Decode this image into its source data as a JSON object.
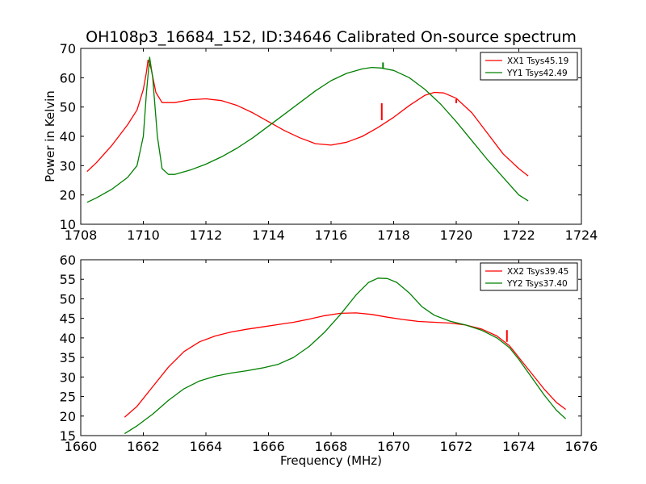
{
  "figure": {
    "title": "OH108p3_16684_152, ID:34646 Calibrated On-source spectrum"
  },
  "chart_data": [
    {
      "type": "line",
      "ylabel": "Power in Kelvin",
      "xlabel": "",
      "xlim": [
        1708,
        1724
      ],
      "ylim": [
        10,
        70
      ],
      "xticks": [
        "1708",
        "1710",
        "1712",
        "1714",
        "1716",
        "1718",
        "1720",
        "1722",
        "1724"
      ],
      "yticks": [
        "10",
        "20",
        "30",
        "40",
        "50",
        "60",
        "70"
      ],
      "legend_position": "top-right",
      "grid": false,
      "series": [
        {
          "name": "XX1 Tsys45.19",
          "color": "#ff0000",
          "points": [
            [
              1708.2,
              28
            ],
            [
              1708.5,
              31
            ],
            [
              1709.0,
              37
            ],
            [
              1709.5,
              44
            ],
            [
              1709.8,
              49
            ],
            [
              1710.0,
              56
            ],
            [
              1710.1,
              62
            ],
            [
              1710.15,
              66
            ],
            [
              1710.25,
              63
            ],
            [
              1710.4,
              55
            ],
            [
              1710.6,
              51.5
            ],
            [
              1711.0,
              51.5
            ],
            [
              1711.5,
              52.5
            ],
            [
              1712.0,
              52.8
            ],
            [
              1712.5,
              52.2
            ],
            [
              1713.0,
              50.5
            ],
            [
              1713.5,
              48
            ],
            [
              1714.0,
              45
            ],
            [
              1714.5,
              42
            ],
            [
              1715.0,
              39.5
            ],
            [
              1715.5,
              37.5
            ],
            [
              1716.0,
              37
            ],
            [
              1716.5,
              38
            ],
            [
              1717.0,
              40
            ],
            [
              1717.5,
              43
            ],
            [
              1718.0,
              46.5
            ],
            [
              1718.5,
              50.5
            ],
            [
              1719.0,
              54
            ],
            [
              1719.3,
              55
            ],
            [
              1719.6,
              54.8
            ],
            [
              1720.0,
              53
            ],
            [
              1720.5,
              48
            ],
            [
              1721.0,
              41
            ],
            [
              1721.5,
              34
            ],
            [
              1722.0,
              29
            ],
            [
              1722.3,
              26.5
            ]
          ],
          "spikes": [
            {
              "x": 1717.62,
              "y0": 45.5,
              "y1": 51.3
            },
            {
              "x": 1720.0,
              "y0": 51.3,
              "y1": 52.7
            }
          ]
        },
        {
          "name": "YY1 Tsys42.49",
          "color": "#008000",
          "points": [
            [
              1708.2,
              17.5
            ],
            [
              1708.5,
              19
            ],
            [
              1709.0,
              22
            ],
            [
              1709.5,
              26
            ],
            [
              1709.8,
              30
            ],
            [
              1710.0,
              40
            ],
            [
              1710.1,
              55
            ],
            [
              1710.2,
              67
            ],
            [
              1710.3,
              60
            ],
            [
              1710.45,
              40
            ],
            [
              1710.6,
              29
            ],
            [
              1710.8,
              27
            ],
            [
              1711.0,
              27
            ],
            [
              1711.5,
              28.5
            ],
            [
              1712.0,
              30.5
            ],
            [
              1712.5,
              33
            ],
            [
              1713.0,
              36
            ],
            [
              1713.5,
              39.5
            ],
            [
              1714.0,
              43.5
            ],
            [
              1714.5,
              47.5
            ],
            [
              1715.0,
              51.5
            ],
            [
              1715.5,
              55.5
            ],
            [
              1716.0,
              59
            ],
            [
              1716.5,
              61.5
            ],
            [
              1717.0,
              63
            ],
            [
              1717.3,
              63.5
            ],
            [
              1717.6,
              63.3
            ],
            [
              1718.0,
              62.5
            ],
            [
              1718.5,
              60
            ],
            [
              1719.0,
              56
            ],
            [
              1719.5,
              51
            ],
            [
              1720.0,
              45
            ],
            [
              1720.5,
              38.5
            ],
            [
              1721.0,
              32
            ],
            [
              1721.5,
              26
            ],
            [
              1722.0,
              20
            ],
            [
              1722.3,
              18
            ]
          ],
          "spikes": [
            {
              "x": 1717.66,
              "y0": 63.2,
              "y1": 65.2
            }
          ]
        }
      ]
    },
    {
      "type": "line",
      "ylabel": "",
      "xlabel": "Frequency (MHz)",
      "xlim": [
        1660,
        1676
      ],
      "ylim": [
        15,
        60
      ],
      "xticks": [
        "1660",
        "1662",
        "1664",
        "1666",
        "1668",
        "1670",
        "1672",
        "1674",
        "1676"
      ],
      "yticks": [
        "15",
        "20",
        "25",
        "30",
        "35",
        "40",
        "45",
        "50",
        "55",
        "60"
      ],
      "legend_position": "top-right",
      "grid": false,
      "series": [
        {
          "name": "XX2 Tsys39.45",
          "color": "#ff0000",
          "points": [
            [
              1661.4,
              19.7
            ],
            [
              1661.8,
              22.5
            ],
            [
              1662.3,
              27.5
            ],
            [
              1662.8,
              32.5
            ],
            [
              1663.3,
              36.5
            ],
            [
              1663.8,
              39
            ],
            [
              1664.3,
              40.5
            ],
            [
              1664.8,
              41.5
            ],
            [
              1665.3,
              42.2
            ],
            [
              1665.8,
              42.8
            ],
            [
              1666.3,
              43.4
            ],
            [
              1666.8,
              44
            ],
            [
              1667.3,
              44.8
            ],
            [
              1667.8,
              45.7
            ],
            [
              1668.3,
              46.3
            ],
            [
              1668.8,
              46.4
            ],
            [
              1669.3,
              46
            ],
            [
              1669.8,
              45.3
            ],
            [
              1670.3,
              44.7
            ],
            [
              1670.8,
              44.2
            ],
            [
              1671.3,
              44
            ],
            [
              1671.8,
              43.8
            ],
            [
              1672.3,
              43.3
            ],
            [
              1672.8,
              42.3
            ],
            [
              1673.3,
              40.5
            ],
            [
              1673.7,
              38
            ],
            [
              1674.0,
              35
            ],
            [
              1674.4,
              31
            ],
            [
              1674.8,
              27
            ],
            [
              1675.2,
              23.5
            ],
            [
              1675.5,
              21.7
            ]
          ],
          "spikes": [
            {
              "x": 1673.62,
              "y0": 39,
              "y1": 42
            }
          ]
        },
        {
          "name": "YY2 Tsys37.40",
          "color": "#008000",
          "points": [
            [
              1661.4,
              15.5
            ],
            [
              1661.8,
              17.5
            ],
            [
              1662.3,
              20.5
            ],
            [
              1662.8,
              24
            ],
            [
              1663.3,
              27
            ],
            [
              1663.8,
              29
            ],
            [
              1664.3,
              30.2
            ],
            [
              1664.8,
              31
            ],
            [
              1665.3,
              31.6
            ],
            [
              1665.8,
              32.3
            ],
            [
              1666.3,
              33.2
            ],
            [
              1666.8,
              35
            ],
            [
              1667.3,
              37.8
            ],
            [
              1667.8,
              41.5
            ],
            [
              1668.3,
              46
            ],
            [
              1668.8,
              51
            ],
            [
              1669.2,
              54.2
            ],
            [
              1669.5,
              55.3
            ],
            [
              1669.8,
              55.2
            ],
            [
              1670.1,
              54.2
            ],
            [
              1670.5,
              51.5
            ],
            [
              1670.9,
              48
            ],
            [
              1671.3,
              45.8
            ],
            [
              1671.8,
              44.3
            ],
            [
              1672.3,
              43.3
            ],
            [
              1672.8,
              42
            ],
            [
              1673.3,
              40
            ],
            [
              1673.7,
              37.5
            ],
            [
              1674.0,
              34.5
            ],
            [
              1674.4,
              30
            ],
            [
              1674.8,
              25.5
            ],
            [
              1675.2,
              21.5
            ],
            [
              1675.5,
              19.3
            ]
          ],
          "spikes": []
        }
      ]
    }
  ]
}
